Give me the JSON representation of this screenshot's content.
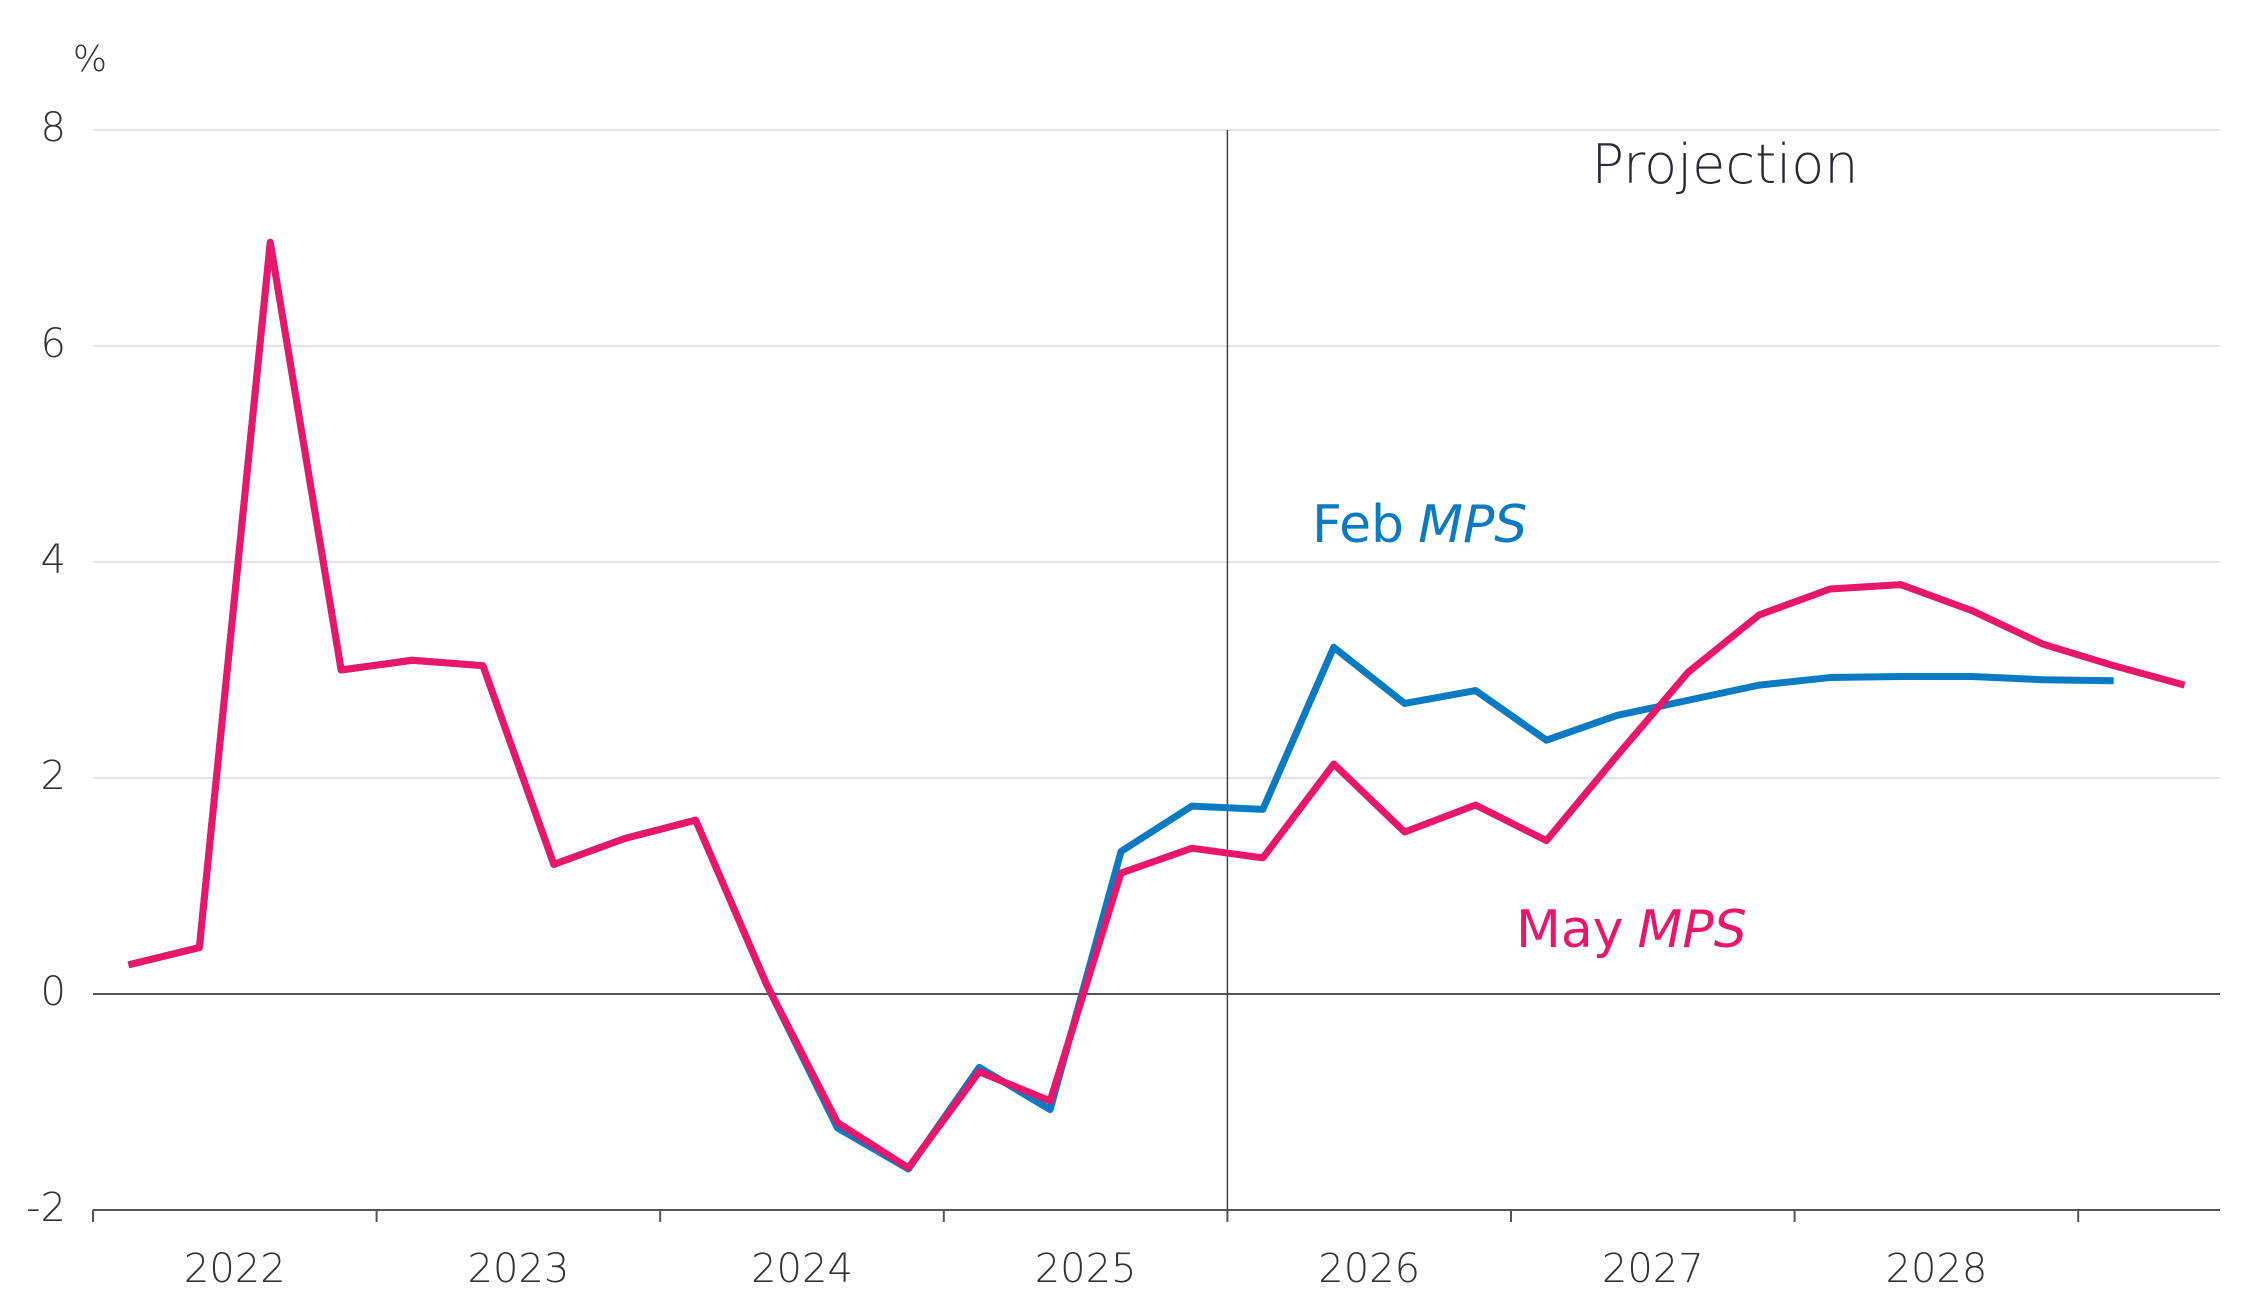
{
  "chart_data": {
    "type": "line",
    "y_unit": "%",
    "annotation": "Projection",
    "projection_start": 2026,
    "xlim": [
      2022,
      2029.5
    ],
    "xtick_marks": [
      2022,
      2023,
      2024,
      2025,
      2026,
      2027,
      2028,
      2029
    ],
    "xticks": [
      {
        "value": 2022.5,
        "label": "2022"
      },
      {
        "value": 2023.5,
        "label": "2023"
      },
      {
        "value": 2024.5,
        "label": "2024"
      },
      {
        "value": 2025.5,
        "label": "2025"
      },
      {
        "value": 2026.5,
        "label": "2026"
      },
      {
        "value": 2027.5,
        "label": "2027"
      },
      {
        "value": 2028.5,
        "label": "2028"
      }
    ],
    "ylim": [
      -2,
      8
    ],
    "yticks": [
      -2,
      0,
      2,
      4,
      6,
      8
    ],
    "grid": true,
    "zero_line": true,
    "x": [
      2022.125,
      2022.375,
      2022.625,
      2022.875,
      2023.125,
      2023.375,
      2023.625,
      2023.875,
      2024.125,
      2024.375,
      2024.625,
      2024.875,
      2025.125,
      2025.375,
      2025.625,
      2025.875,
      2026.125,
      2026.375,
      2026.625,
      2026.875,
      2027.125,
      2027.375,
      2027.625,
      2027.875,
      2028.125,
      2028.375,
      2028.625,
      2028.875,
      2029.125,
      2029.375
    ],
    "series": [
      {
        "name_parts": [
          "Feb",
          "MPS"
        ],
        "color": "#0a7bc2",
        "values": [
          0.27,
          0.43,
          6.96,
          3.0,
          3.09,
          3.04,
          1.2,
          1.44,
          1.61,
          0.09,
          -1.24,
          -1.62,
          -0.68,
          -1.07,
          1.32,
          1.74,
          1.71,
          3.21,
          2.69,
          2.81,
          2.35,
          2.58,
          2.72,
          2.86,
          2.93,
          2.94,
          2.94,
          2.91,
          2.9,
          null
        ]
      },
      {
        "name_parts": [
          "May",
          "MPS"
        ],
        "color": "#e8176b",
        "values": [
          0.27,
          0.43,
          6.96,
          3.0,
          3.09,
          3.04,
          1.2,
          1.44,
          1.61,
          0.09,
          -1.19,
          -1.61,
          -0.72,
          -0.99,
          1.12,
          1.35,
          1.26,
          2.13,
          1.5,
          1.75,
          1.42,
          2.21,
          2.98,
          3.51,
          3.75,
          3.79,
          3.55,
          3.24,
          3.04,
          2.86
        ]
      }
    ]
  }
}
